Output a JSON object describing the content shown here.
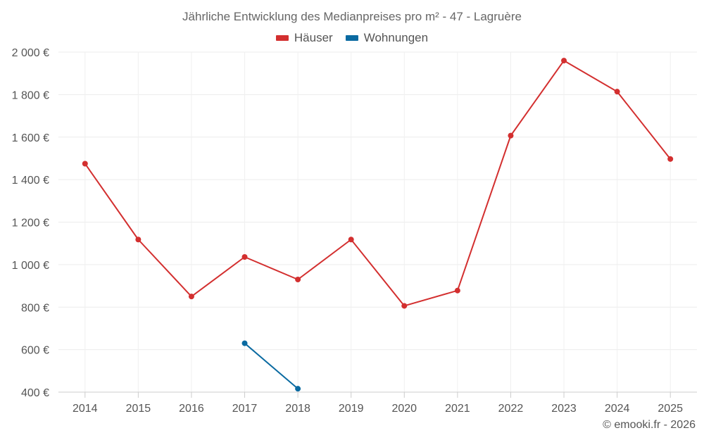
{
  "chart_data": {
    "type": "line",
    "title": "Jährliche Entwicklung des Medianpreises pro m² - 47 - Lagruère",
    "categories": [
      "2014",
      "2015",
      "2016",
      "2017",
      "2018",
      "2019",
      "2020",
      "2021",
      "2022",
      "2023",
      "2024",
      "2025"
    ],
    "series": [
      {
        "name": "Häuser",
        "color": "#d32f2f",
        "values": [
          1475,
          1118,
          850,
          1036,
          930,
          1118,
          806,
          878,
          1607,
          1960,
          1814,
          1497
        ]
      },
      {
        "name": "Wohnungen",
        "color": "#0a6aa1",
        "values": [
          null,
          null,
          null,
          630,
          416,
          null,
          null,
          null,
          null,
          null,
          null,
          null
        ]
      }
    ],
    "ylim": [
      400,
      2000
    ],
    "yticks": [
      400,
      600,
      800,
      1000,
      1200,
      1400,
      1600,
      1800,
      2000
    ],
    "ytick_labels": [
      "400 €",
      "600 €",
      "800 €",
      "1 000 €",
      "1 200 €",
      "1 400 €",
      "1 600 €",
      "1 800 €",
      "2 000 €"
    ],
    "xlabel": "",
    "ylabel": "",
    "grid": true,
    "legend_position": "top-center"
  },
  "credit": "© emooki.fr - 2026"
}
